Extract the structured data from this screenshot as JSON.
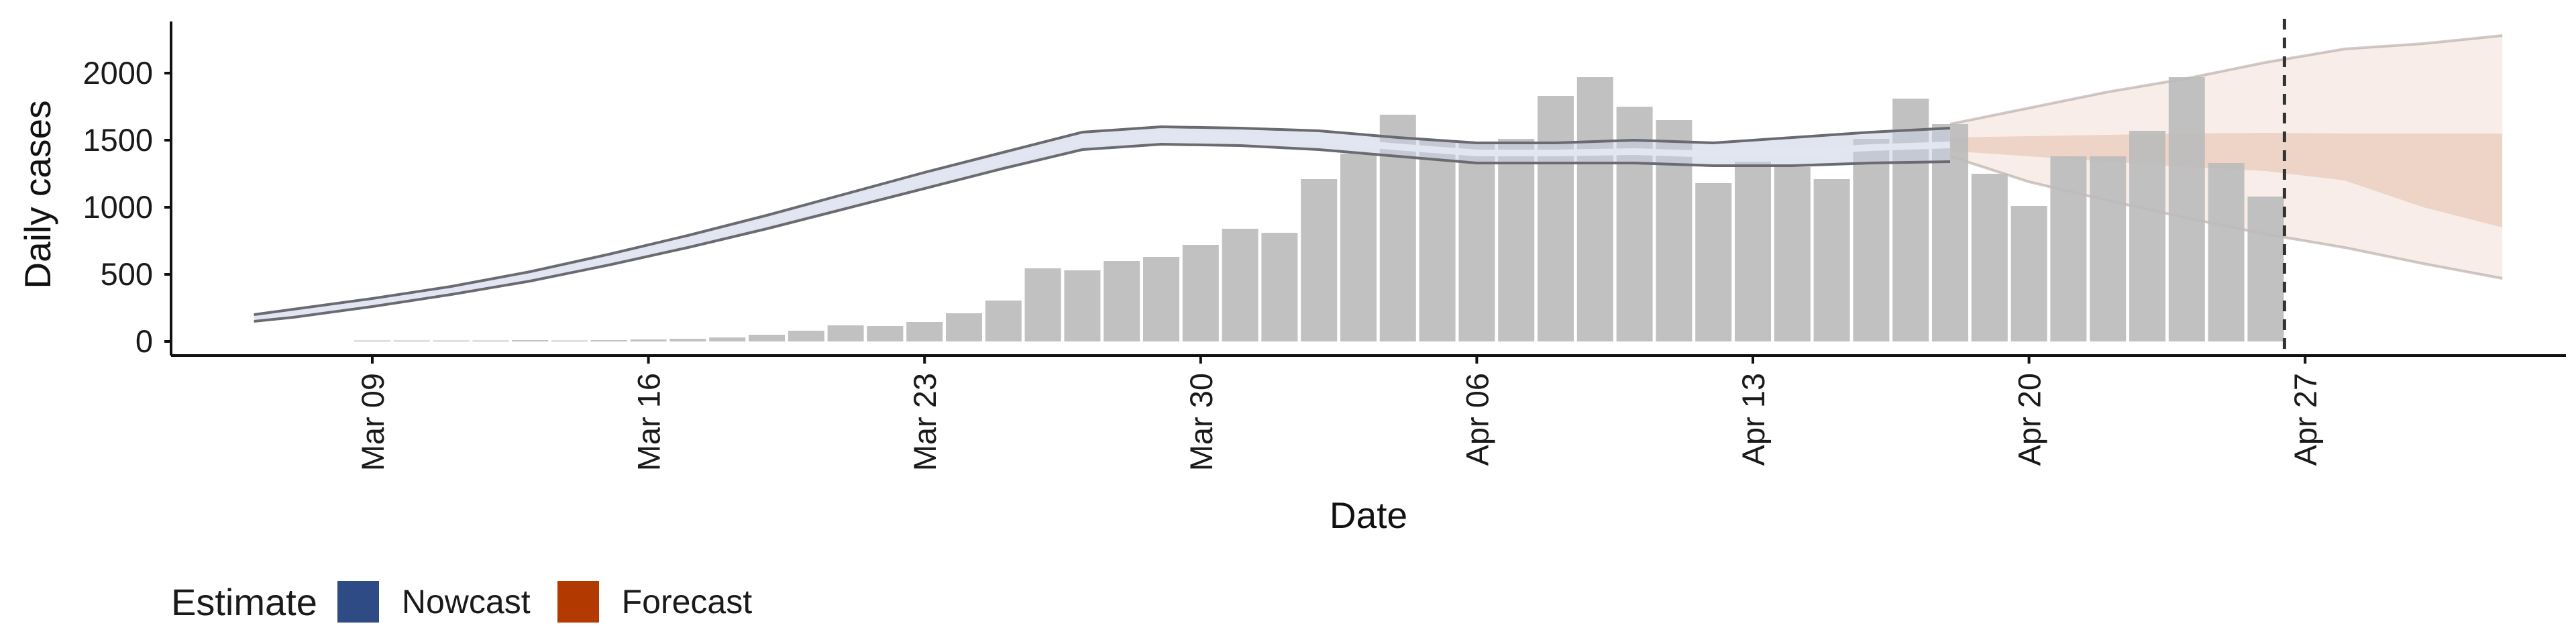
{
  "chart_data": {
    "type": "bar",
    "xlabel": "Date",
    "ylabel": "Daily cases",
    "ylim": [
      -100,
      2400
    ],
    "y_ticks": [
      0,
      500,
      1000,
      1500,
      2000
    ],
    "x_tick_labels": [
      "Mar 09",
      "Mar 16",
      "Mar 23",
      "Mar 30",
      "Apr 06",
      "Apr 13",
      "Apr 20",
      "Apr 27"
    ],
    "cutoff_date": "Apr 26",
    "grid": false,
    "legend": {
      "title": "Estimate",
      "placement": "bottom-left",
      "items": [
        {
          "label": "Nowcast",
          "color": "#2f4b86"
        },
        {
          "label": "Forecast",
          "color": "#b23a00"
        }
      ]
    },
    "series": [
      {
        "kind": "bars",
        "color": "#bcbcbc",
        "dates": [
          "Mar 09",
          "Mar 10",
          "Mar 11",
          "Mar 12",
          "Mar 13",
          "Mar 14",
          "Mar 15",
          "Mar 16",
          "Mar 17",
          "Mar 18",
          "Mar 19",
          "Mar 20",
          "Mar 21",
          "Mar 22",
          "Mar 23",
          "Mar 24",
          "Mar 25",
          "Mar 26",
          "Mar 27",
          "Mar 28",
          "Mar 29",
          "Mar 30",
          "Mar 31",
          "Apr 01",
          "Apr 02",
          "Apr 03",
          "Apr 04",
          "Apr 05",
          "Apr 06",
          "Apr 07",
          "Apr 08",
          "Apr 09",
          "Apr 10",
          "Apr 11",
          "Apr 12",
          "Apr 13",
          "Apr 14",
          "Apr 15",
          "Apr 16",
          "Apr 17",
          "Apr 18",
          "Apr 19",
          "Apr 20",
          "Apr 21",
          "Apr 22",
          "Apr 23",
          "Apr 24",
          "Apr 25",
          "Apr 26"
        ],
        "values": [
          2,
          0,
          5,
          5,
          10,
          5,
          10,
          15,
          20,
          30,
          50,
          80,
          120,
          115,
          145,
          210,
          305,
          545,
          530,
          600,
          630,
          720,
          840,
          810,
          1210,
          1400,
          1690,
          1500,
          1480,
          1510,
          1830,
          1970,
          1750,
          1650,
          1180,
          1340,
          1300,
          1210,
          1510,
          1810,
          1620,
          1250,
          1010,
          1380,
          1380,
          1570,
          1970,
          1330,
          1080
        ]
      },
      {
        "kind": "band",
        "name": "Nowcast",
        "color": "#2f4b86",
        "dates": [
          "Mar 06",
          "Mar 07",
          "Mar 09",
          "Mar 11",
          "Mar 13",
          "Mar 15",
          "Mar 17",
          "Mar 19",
          "Mar 21",
          "Mar 23",
          "Mar 25",
          "Mar 27",
          "Mar 29",
          "Mar 31",
          "Apr 02",
          "Apr 04",
          "Apr 06",
          "Apr 08",
          "Apr 10",
          "Apr 12",
          "Apr 14",
          "Apr 16",
          "Apr 18"
        ],
        "lower": [
          150,
          180,
          260,
          350,
          450,
          570,
          700,
          840,
          990,
          1140,
          1290,
          1430,
          1470,
          1460,
          1430,
          1380,
          1330,
          1330,
          1330,
          1310,
          1310,
          1330,
          1340
        ],
        "upper": [
          200,
          240,
          320,
          410,
          520,
          650,
          790,
          940,
          1100,
          1260,
          1410,
          1560,
          1600,
          1590,
          1570,
          1520,
          1480,
          1480,
          1500,
          1480,
          1520,
          1560,
          1590
        ]
      },
      {
        "kind": "band",
        "name": "Forecast",
        "color": "#b23a00",
        "dates": [
          "Apr 18",
          "Apr 20",
          "Apr 22",
          "Apr 24",
          "Apr 26",
          "Apr 28",
          "Apr 30",
          "May 02"
        ],
        "lower_90": [
          1380,
          1190,
          1050,
          920,
          800,
          700,
          580,
          470
        ],
        "lower_50": [
          1420,
          1380,
          1340,
          1300,
          1270,
          1200,
          1000,
          850
        ],
        "upper_50": [
          1520,
          1530,
          1540,
          1550,
          1555,
          1550,
          1550,
          1550
        ],
        "upper_90": [
          1620,
          1740,
          1860,
          1960,
          2080,
          2180,
          2220,
          2280
        ]
      }
    ]
  }
}
